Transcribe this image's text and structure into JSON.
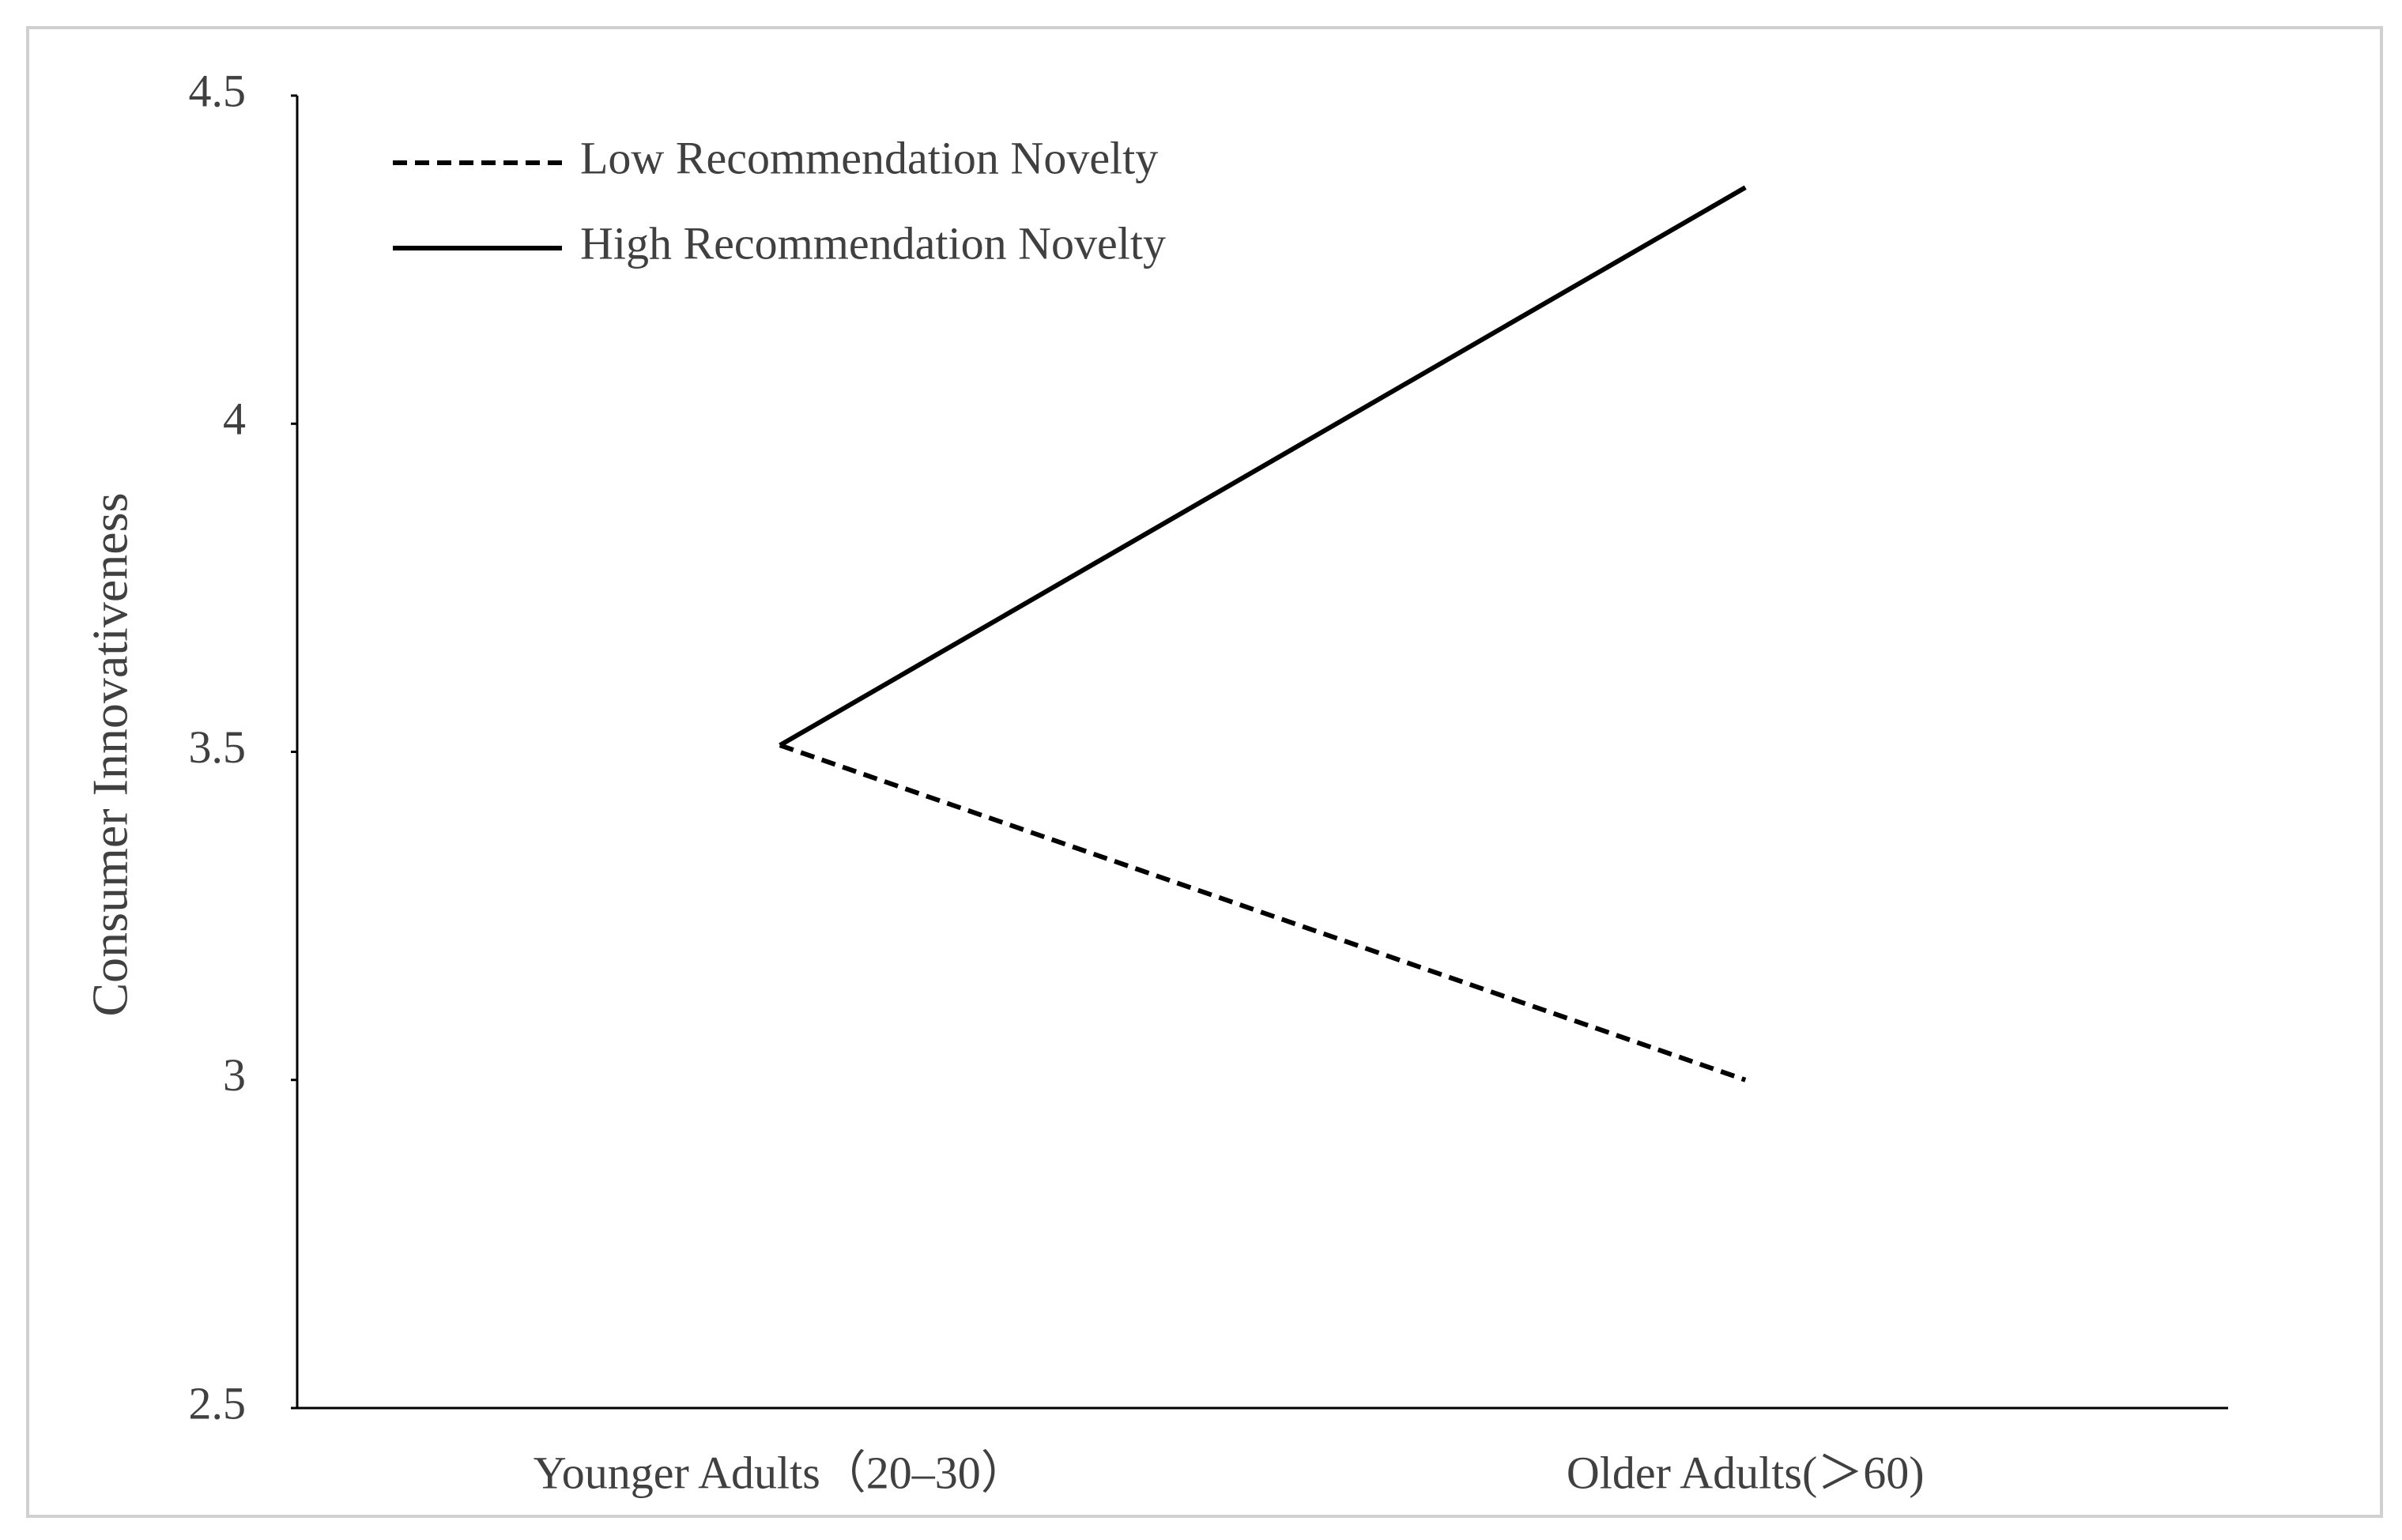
{
  "chart_data": {
    "type": "line",
    "y_label": "Consumer Innovativeness",
    "categories": [
      "Younger Adults（20–30）",
      "Older Adults(＞60)"
    ],
    "series": [
      {
        "name": "Low Recommendation Novelty",
        "color": "#000000",
        "style": "dashed",
        "values": [
          3.51,
          3.0
        ]
      },
      {
        "name": "High Recommendation Novelty",
        "color": "#000000",
        "style": "solid",
        "values": [
          3.51,
          4.36
        ]
      }
    ],
    "ylim": [
      2.5,
      4.5
    ],
    "yticks": [
      2.5,
      3,
      3.5,
      4,
      4.5
    ],
    "grid": false,
    "legend": "upper left"
  }
}
